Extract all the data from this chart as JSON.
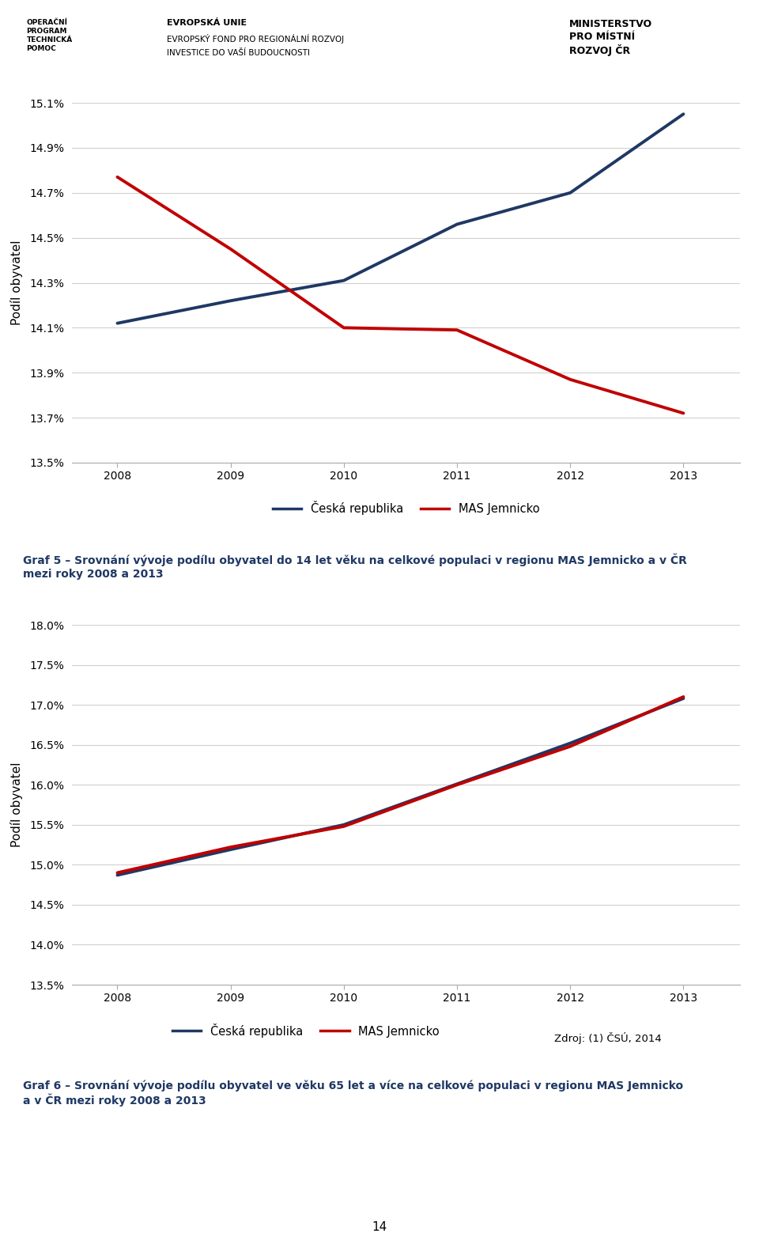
{
  "years": [
    2008,
    2009,
    2010,
    2011,
    2012,
    2013
  ],
  "chart1": {
    "cr": [
      14.12,
      14.22,
      14.31,
      14.56,
      14.7,
      15.05
    ],
    "mas": [
      14.77,
      14.45,
      14.1,
      14.09,
      13.87,
      13.72
    ],
    "ylim": [
      13.5,
      15.1
    ],
    "yticks": [
      13.5,
      13.7,
      13.9,
      14.1,
      14.3,
      14.5,
      14.7,
      14.9,
      15.1
    ],
    "ylabel": "Podíl obyvatel"
  },
  "chart2": {
    "cr": [
      14.87,
      15.19,
      15.5,
      16.01,
      16.52,
      17.08
    ],
    "mas": [
      14.9,
      15.22,
      15.48,
      16.0,
      16.48,
      17.1
    ],
    "ylim": [
      13.5,
      18.0
    ],
    "yticks": [
      13.5,
      14.0,
      14.5,
      15.0,
      15.5,
      16.0,
      16.5,
      17.0,
      17.5,
      18.0
    ],
    "ylabel": "Podíl obyvatel"
  },
  "cr_color": "#1F3864",
  "mas_color": "#C00000",
  "cr_label": "Česká republika",
  "mas_label": "MAS Jemnicko",
  "graf5_caption_line1": "Graf 5 – Srovnání vývoje podílu obyvatel do 14 let věku na celkové populaci v regionu MAS Jemnicko a v ČR",
  "graf5_caption_line2": "mezi roky 2008 a 2013",
  "graf6_caption_line1": "Graf 6 – Srovnání vývoje podílu obyvatel ve věku 65 let a více na celkové populaci v regionu MAS Jemnicko",
  "graf6_caption_line2": "a v ČR mezi roky 2008 a 2013",
  "source_text": "Zdroj: (1) ČSÚ, 2014",
  "page_number": "14",
  "header_texts": {
    "optp": "OPERAČNÍ\nPROGRAM\nTECHNICKÁ\nPOMOC",
    "eu_line1": "EVROPSKÁ UNIE",
    "eu_line2": "EVROPSKÝ FOND PRO REGIONÁLNÍ ROZVOJ",
    "eu_line3": "INVESTICE DO VAŠÍ BUDOUCNOSTI",
    "ministry": "MINISTERSTVO\nPRO MÍSTNÍ\nROZVOJ ČR"
  }
}
